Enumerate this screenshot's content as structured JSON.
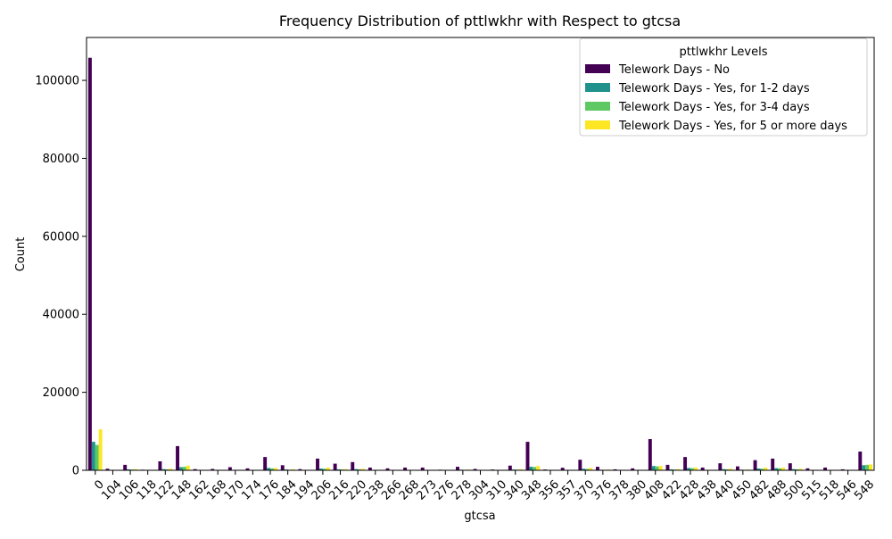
{
  "chart_data": {
    "type": "bar",
    "title": "Frequency Distribution of pttlwkhr with Respect to gtcsa",
    "xlabel": "gtcsa",
    "ylabel": "Count",
    "ylim": [
      0,
      111000
    ],
    "yticks": [
      0,
      20000,
      40000,
      60000,
      80000,
      100000
    ],
    "tick_rotation_deg": 45,
    "grid": false,
    "categories": [
      "0",
      "104",
      "106",
      "118",
      "122",
      "148",
      "162",
      "168",
      "170",
      "174",
      "176",
      "184",
      "194",
      "206",
      "216",
      "220",
      "238",
      "266",
      "268",
      "273",
      "276",
      "278",
      "304",
      "310",
      "340",
      "348",
      "356",
      "357",
      "370",
      "376",
      "378",
      "380",
      "408",
      "422",
      "428",
      "438",
      "440",
      "450",
      "482",
      "488",
      "500",
      "515",
      "518",
      "546",
      "548"
    ],
    "legend": {
      "title": "pttlwkhr Levels",
      "placement": "top-right"
    },
    "series": [
      {
        "name": "Telework Days - No",
        "color": "#440154",
        "values": [
          105800,
          400,
          1400,
          150,
          2300,
          6200,
          300,
          350,
          800,
          500,
          3400,
          1300,
          300,
          3000,
          1700,
          2100,
          700,
          500,
          700,
          700,
          150,
          900,
          350,
          200,
          1200,
          7300,
          200,
          650,
          2700,
          900,
          250,
          500,
          8000,
          1400,
          3400,
          700,
          1800,
          1000,
          2600,
          3000,
          1800,
          500,
          700,
          250,
          4800
        ]
      },
      {
        "name": "Telework Days - Yes, for 1-2 days",
        "color": "#21918c",
        "values": [
          7300,
          50,
          250,
          30,
          300,
          800,
          50,
          50,
          100,
          70,
          600,
          200,
          50,
          450,
          250,
          300,
          100,
          70,
          100,
          100,
          30,
          150,
          60,
          40,
          200,
          900,
          40,
          100,
          400,
          150,
          40,
          80,
          1100,
          250,
          600,
          100,
          300,
          150,
          450,
          550,
          300,
          80,
          100,
          40,
          1300
        ]
      },
      {
        "name": "Telework Days - Yes, for 3-4 days",
        "color": "#5ec962",
        "values": [
          6500,
          40,
          200,
          20,
          250,
          900,
          40,
          40,
          80,
          60,
          500,
          150,
          40,
          400,
          200,
          250,
          80,
          60,
          80,
          80,
          20,
          120,
          50,
          30,
          150,
          850,
          30,
          80,
          350,
          120,
          30,
          60,
          1000,
          200,
          550,
          80,
          250,
          120,
          400,
          500,
          250,
          60,
          80,
          30,
          1400
        ]
      },
      {
        "name": "Telework Days - Yes, for 5 or more days",
        "color": "#fde725",
        "values": [
          10500,
          60,
          300,
          30,
          400,
          1200,
          60,
          60,
          120,
          80,
          600,
          250,
          60,
          700,
          300,
          400,
          120,
          80,
          120,
          120,
          30,
          180,
          70,
          50,
          250,
          1100,
          50,
          120,
          600,
          200,
          50,
          100,
          1100,
          300,
          700,
          120,
          400,
          200,
          700,
          700,
          400,
          100,
          120,
          50,
          1500
        ]
      }
    ]
  }
}
